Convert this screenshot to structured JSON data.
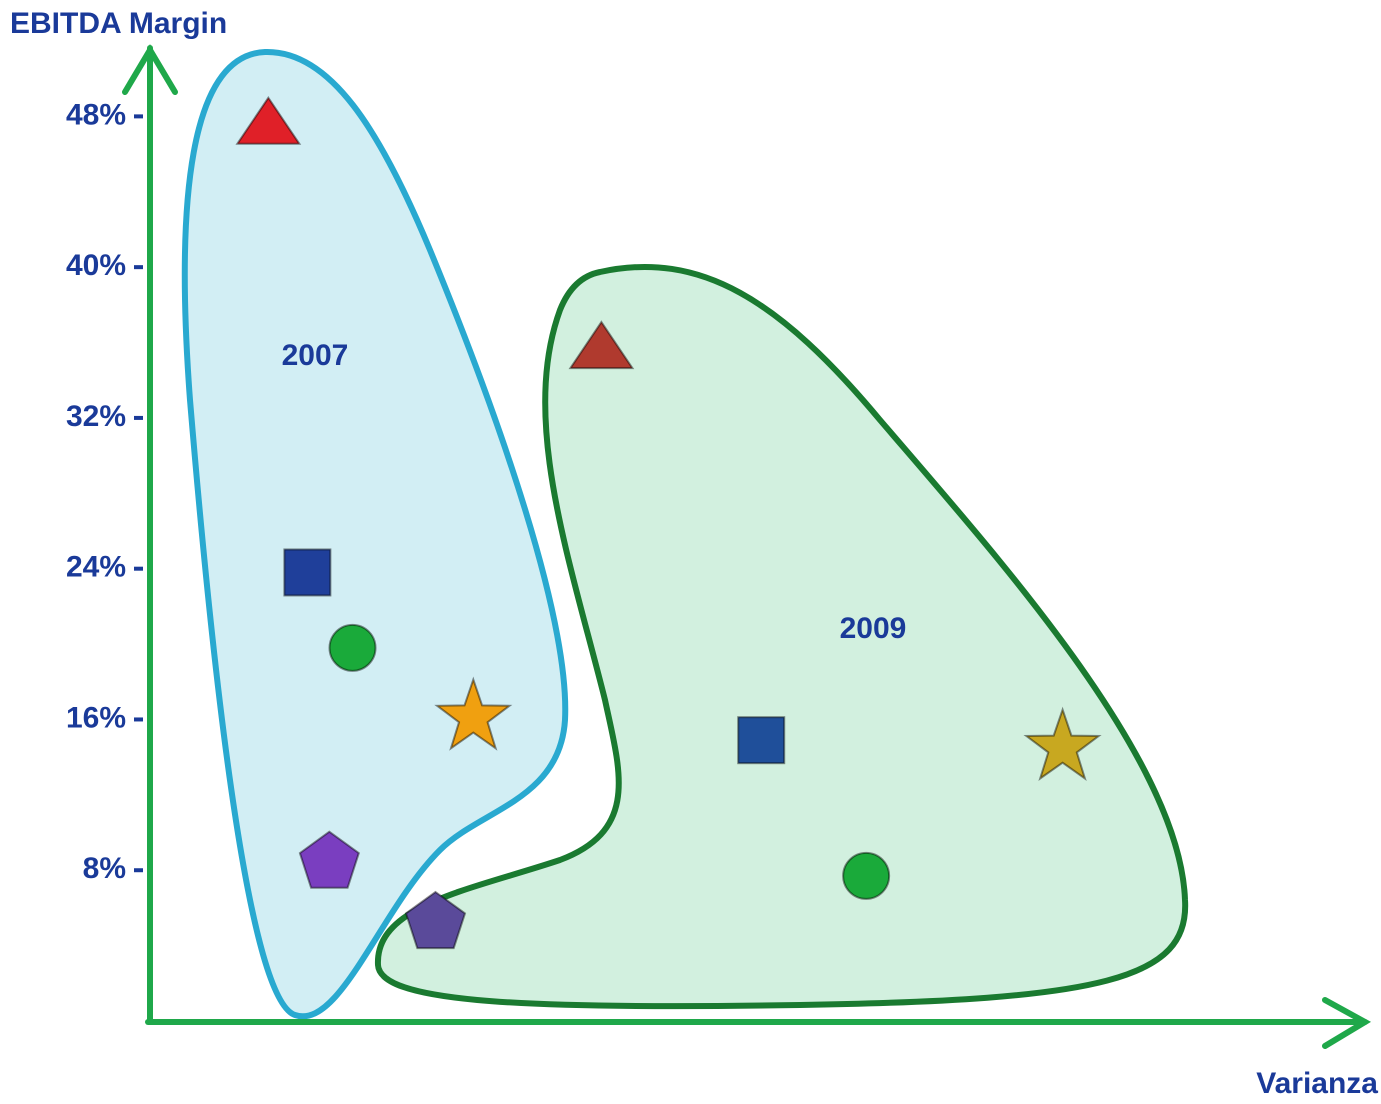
{
  "chart_data": {
    "type": "scatter",
    "title": "EBITDA Margin",
    "x_label": "Varianza",
    "xlim": [
      0,
      100
    ],
    "ylim": [
      0,
      52
    ],
    "yticks": [
      {
        "value": 8,
        "label": "8%"
      },
      {
        "value": 16,
        "label": "16%"
      },
      {
        "value": 24,
        "label": "24%"
      },
      {
        "value": 32,
        "label": "32%"
      },
      {
        "value": 40,
        "label": "40%"
      },
      {
        "value": 48,
        "label": "48%"
      }
    ],
    "series": [
      {
        "name": "2007",
        "color": "#29a9d0",
        "x": [
          9.7,
          12.9,
          16.6,
          26.5,
          14.7
        ],
        "values": [
          47.5,
          23.8,
          19.8,
          16.1,
          8.4
        ],
        "markers": [
          "triangle",
          "square",
          "circle",
          "star",
          "pentagon"
        ],
        "colors": [
          "#e02028",
          "#1f3f9a",
          "#1aaa3a",
          "#f0a010",
          "#7a3ec0"
        ]
      },
      {
        "name": "2009",
        "color": "#1a7a30",
        "x": [
          37.0,
          50.1,
          58.7,
          74.8,
          23.4
        ],
        "values": [
          35.6,
          14.9,
          7.7,
          14.5,
          5.2
        ],
        "markers": [
          "triangle",
          "square",
          "circle",
          "star",
          "pentagon"
        ],
        "colors": [
          "#b03a2e",
          "#1f4f9a",
          "#1aaa3a",
          "#c8a820",
          "#5a4a9a"
        ]
      }
    ]
  }
}
